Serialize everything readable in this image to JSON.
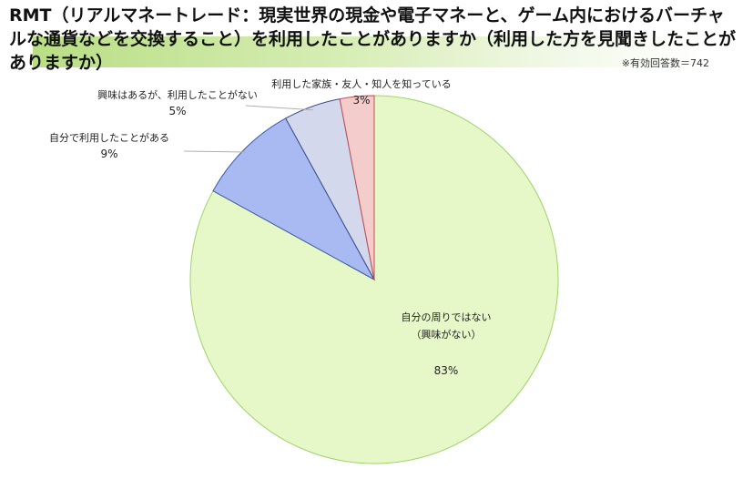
{
  "title": "RMT（リアルマネートレード：現実世界の現金や電子マネーと、ゲーム内におけるバーチャルな通貨などを交換すること）を利用したことがありますか（利用した方を見聞きしたことがありますか）",
  "respondents_note": "※有効回答数＝742",
  "chart_data": {
    "type": "pie",
    "title": "RMT（リアルマネートレード：現実世界の現金や電子マネーと、ゲーム内におけるバーチャルな通貨などを交換すること）を利用したことがありますか（利用した方を見聞きしたことがありますか）",
    "start_angle_deg": 0,
    "direction": "clockwise",
    "slices": [
      {
        "label_lines": [
          "自分の周りではない",
          "（興味がない）"
        ],
        "pct_label": "83%",
        "value": 83,
        "fill": "#e6f8c8",
        "stroke": "#9ed36a"
      },
      {
        "label_lines": [
          "自分で利用したことがある"
        ],
        "pct_label": "9%",
        "value": 9,
        "fill": "#a9baf2",
        "stroke": "#3a5aa6"
      },
      {
        "label_lines": [
          "興味はあるが、利用したことがない"
        ],
        "pct_label": "5%",
        "value": 5,
        "fill": "#d3d8ec",
        "stroke": "#3a4a86"
      },
      {
        "label_lines": [
          "利用した家族・友人・知人を知っている"
        ],
        "pct_label": "3%",
        "value": 3,
        "fill": "#f4cccc",
        "stroke": "#c0504d"
      }
    ]
  }
}
